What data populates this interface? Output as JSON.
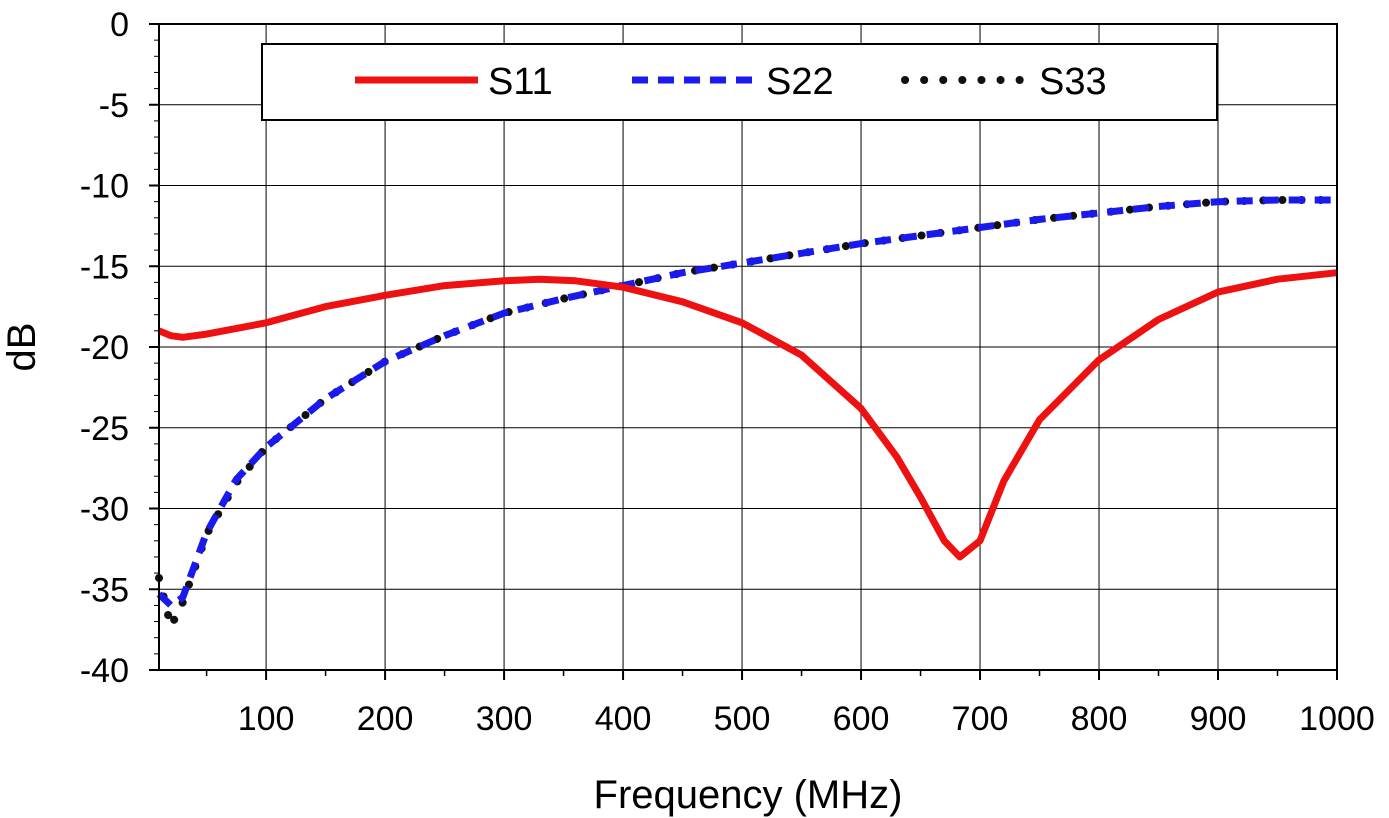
{
  "chart_data": {
    "type": "line",
    "xlabel": "Frequency (MHz)",
    "ylabel": "dB",
    "xlim": [
      10,
      1000
    ],
    "ylim": [
      -40,
      0
    ],
    "xticks": [
      100,
      200,
      300,
      400,
      500,
      600,
      700,
      800,
      900,
      1000
    ],
    "yticks": [
      0,
      -5,
      -10,
      -15,
      -20,
      -25,
      -30,
      -35,
      -40
    ],
    "grid": true,
    "legend_position": "top",
    "series": [
      {
        "name": "S11",
        "color": "#ee1111",
        "style": "solid",
        "x": [
          10,
          20,
          30,
          50,
          100,
          150,
          200,
          250,
          300,
          330,
          360,
          400,
          450,
          500,
          550,
          600,
          630,
          650,
          670,
          683,
          700,
          720,
          750,
          800,
          850,
          900,
          950,
          1000
        ],
        "y": [
          -19.0,
          -19.3,
          -19.4,
          -19.2,
          -18.5,
          -17.5,
          -16.8,
          -16.2,
          -15.9,
          -15.8,
          -15.9,
          -16.3,
          -17.2,
          -18.5,
          -20.5,
          -23.8,
          -26.8,
          -29.3,
          -32.0,
          -33.0,
          -32.0,
          -28.3,
          -24.5,
          -20.8,
          -18.3,
          -16.6,
          -15.8,
          -15.4
        ]
      },
      {
        "name": "S22",
        "color": "#1a1aee",
        "style": "dashed",
        "x": [
          10,
          20,
          30,
          50,
          75,
          100,
          150,
          200,
          250,
          300,
          350,
          400,
          450,
          500,
          550,
          600,
          650,
          700,
          750,
          800,
          850,
          900,
          950,
          1000
        ],
        "y": [
          -35.3,
          -36.0,
          -35.5,
          -31.5,
          -28.2,
          -26.2,
          -23.2,
          -20.9,
          -19.3,
          -17.9,
          -17.0,
          -16.2,
          -15.4,
          -14.8,
          -14.2,
          -13.6,
          -13.1,
          -12.6,
          -12.1,
          -11.7,
          -11.3,
          -11.0,
          -10.9,
          -10.9
        ]
      },
      {
        "name": "S33",
        "color": "#111111",
        "style": "dotted",
        "x": [
          10,
          20,
          30,
          50,
          75,
          100,
          150,
          200,
          250,
          300,
          350,
          400,
          450,
          500,
          550,
          600,
          650,
          700,
          750,
          800,
          850,
          900,
          950,
          1000
        ],
        "y": [
          -34.3,
          -37.3,
          -35.8,
          -31.6,
          -28.4,
          -26.2,
          -23.2,
          -20.9,
          -19.3,
          -17.9,
          -17.0,
          -16.2,
          -15.4,
          -14.8,
          -14.2,
          -13.6,
          -13.1,
          -12.6,
          -12.1,
          -11.7,
          -11.3,
          -11.0,
          -10.9,
          -10.9
        ]
      }
    ]
  }
}
